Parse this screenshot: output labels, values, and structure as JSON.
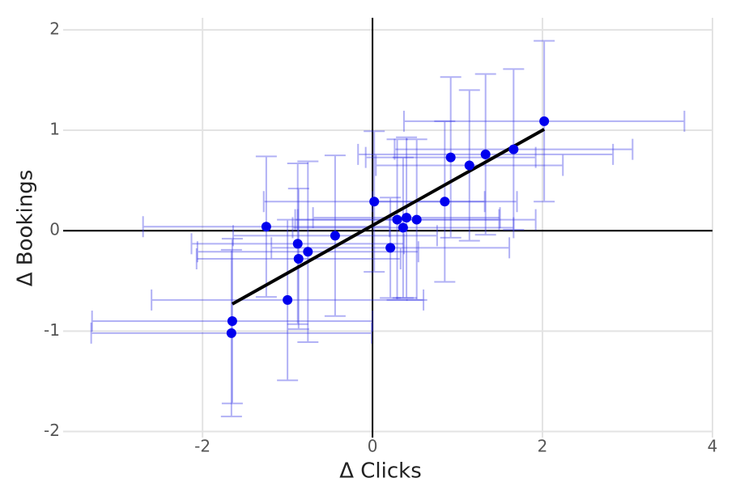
{
  "chart_data": {
    "type": "scatter",
    "x_label": "Δ Clicks",
    "y_label": "Δ Bookings",
    "x": [
      2.02,
      1.66,
      1.33,
      1.14,
      0.92,
      0.85,
      0.02,
      0.52,
      0.4,
      0.29,
      0.36,
      0.21,
      -0.44,
      -0.76,
      -0.88,
      -0.87,
      -1.25,
      -1.0,
      -1.65,
      -1.66
    ],
    "y": [
      1.09,
      0.81,
      0.76,
      0.65,
      0.73,
      0.29,
      0.29,
      0.11,
      0.13,
      0.11,
      0.03,
      -0.17,
      -0.05,
      -0.21,
      -0.13,
      -0.28,
      0.04,
      -0.69,
      -0.9,
      -1.02
    ],
    "xerr": [
      1.65,
      1.4,
      1.5,
      1.1,
      1.0,
      0.85,
      1.3,
      1.4,
      1.1,
      1.2,
      1.3,
      1.4,
      1.2,
      1.3,
      1.25,
      1.2,
      1.45,
      1.6,
      1.65,
      1.65
    ],
    "yerr": [
      0.8,
      0.8,
      0.8,
      0.75,
      0.8,
      0.8,
      0.7,
      0.8,
      0.8,
      0.8,
      0.7,
      0.5,
      0.8,
      0.9,
      0.8,
      0.7,
      0.7,
      0.8,
      0.82,
      0.83
    ],
    "color": "#0000ee",
    "error_color": "rgba(60,60,230,0.4)",
    "fit": {
      "x": [
        -1.65,
        2.02
      ],
      "y": [
        -0.73,
        1.01
      ],
      "color": "#000000"
    },
    "xlim": [
      -3.64,
      4
    ],
    "ylim": [
      -2.06,
      2.12
    ],
    "xticks": [
      -2,
      0,
      2,
      4
    ],
    "yticks": [
      -2,
      -1,
      0,
      1,
      2
    ],
    "grid": true
  }
}
